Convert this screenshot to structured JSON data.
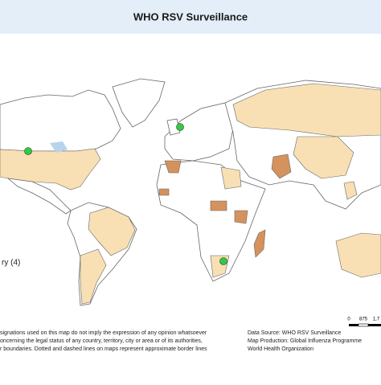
{
  "header": {
    "title": "WHO RSV Surveillance"
  },
  "legend": {
    "entry": "ry (4)"
  },
  "scale_bar": {
    "labels": [
      "0",
      "875",
      "1,7"
    ]
  },
  "disclaimer": [
    "signations used on this map do not imply the expression of any opinion whatsoever",
    "oncerning the legal status of any country, territory, city or area or of its authorities,",
    "r boundaries. Dotted and dashed lines on maps represent approximate border lines"
  ],
  "credits": [
    "Data Source: WHO RSV Surveillance",
    "Map Production: Global Influenza Programme",
    "World Health Organization"
  ]
}
